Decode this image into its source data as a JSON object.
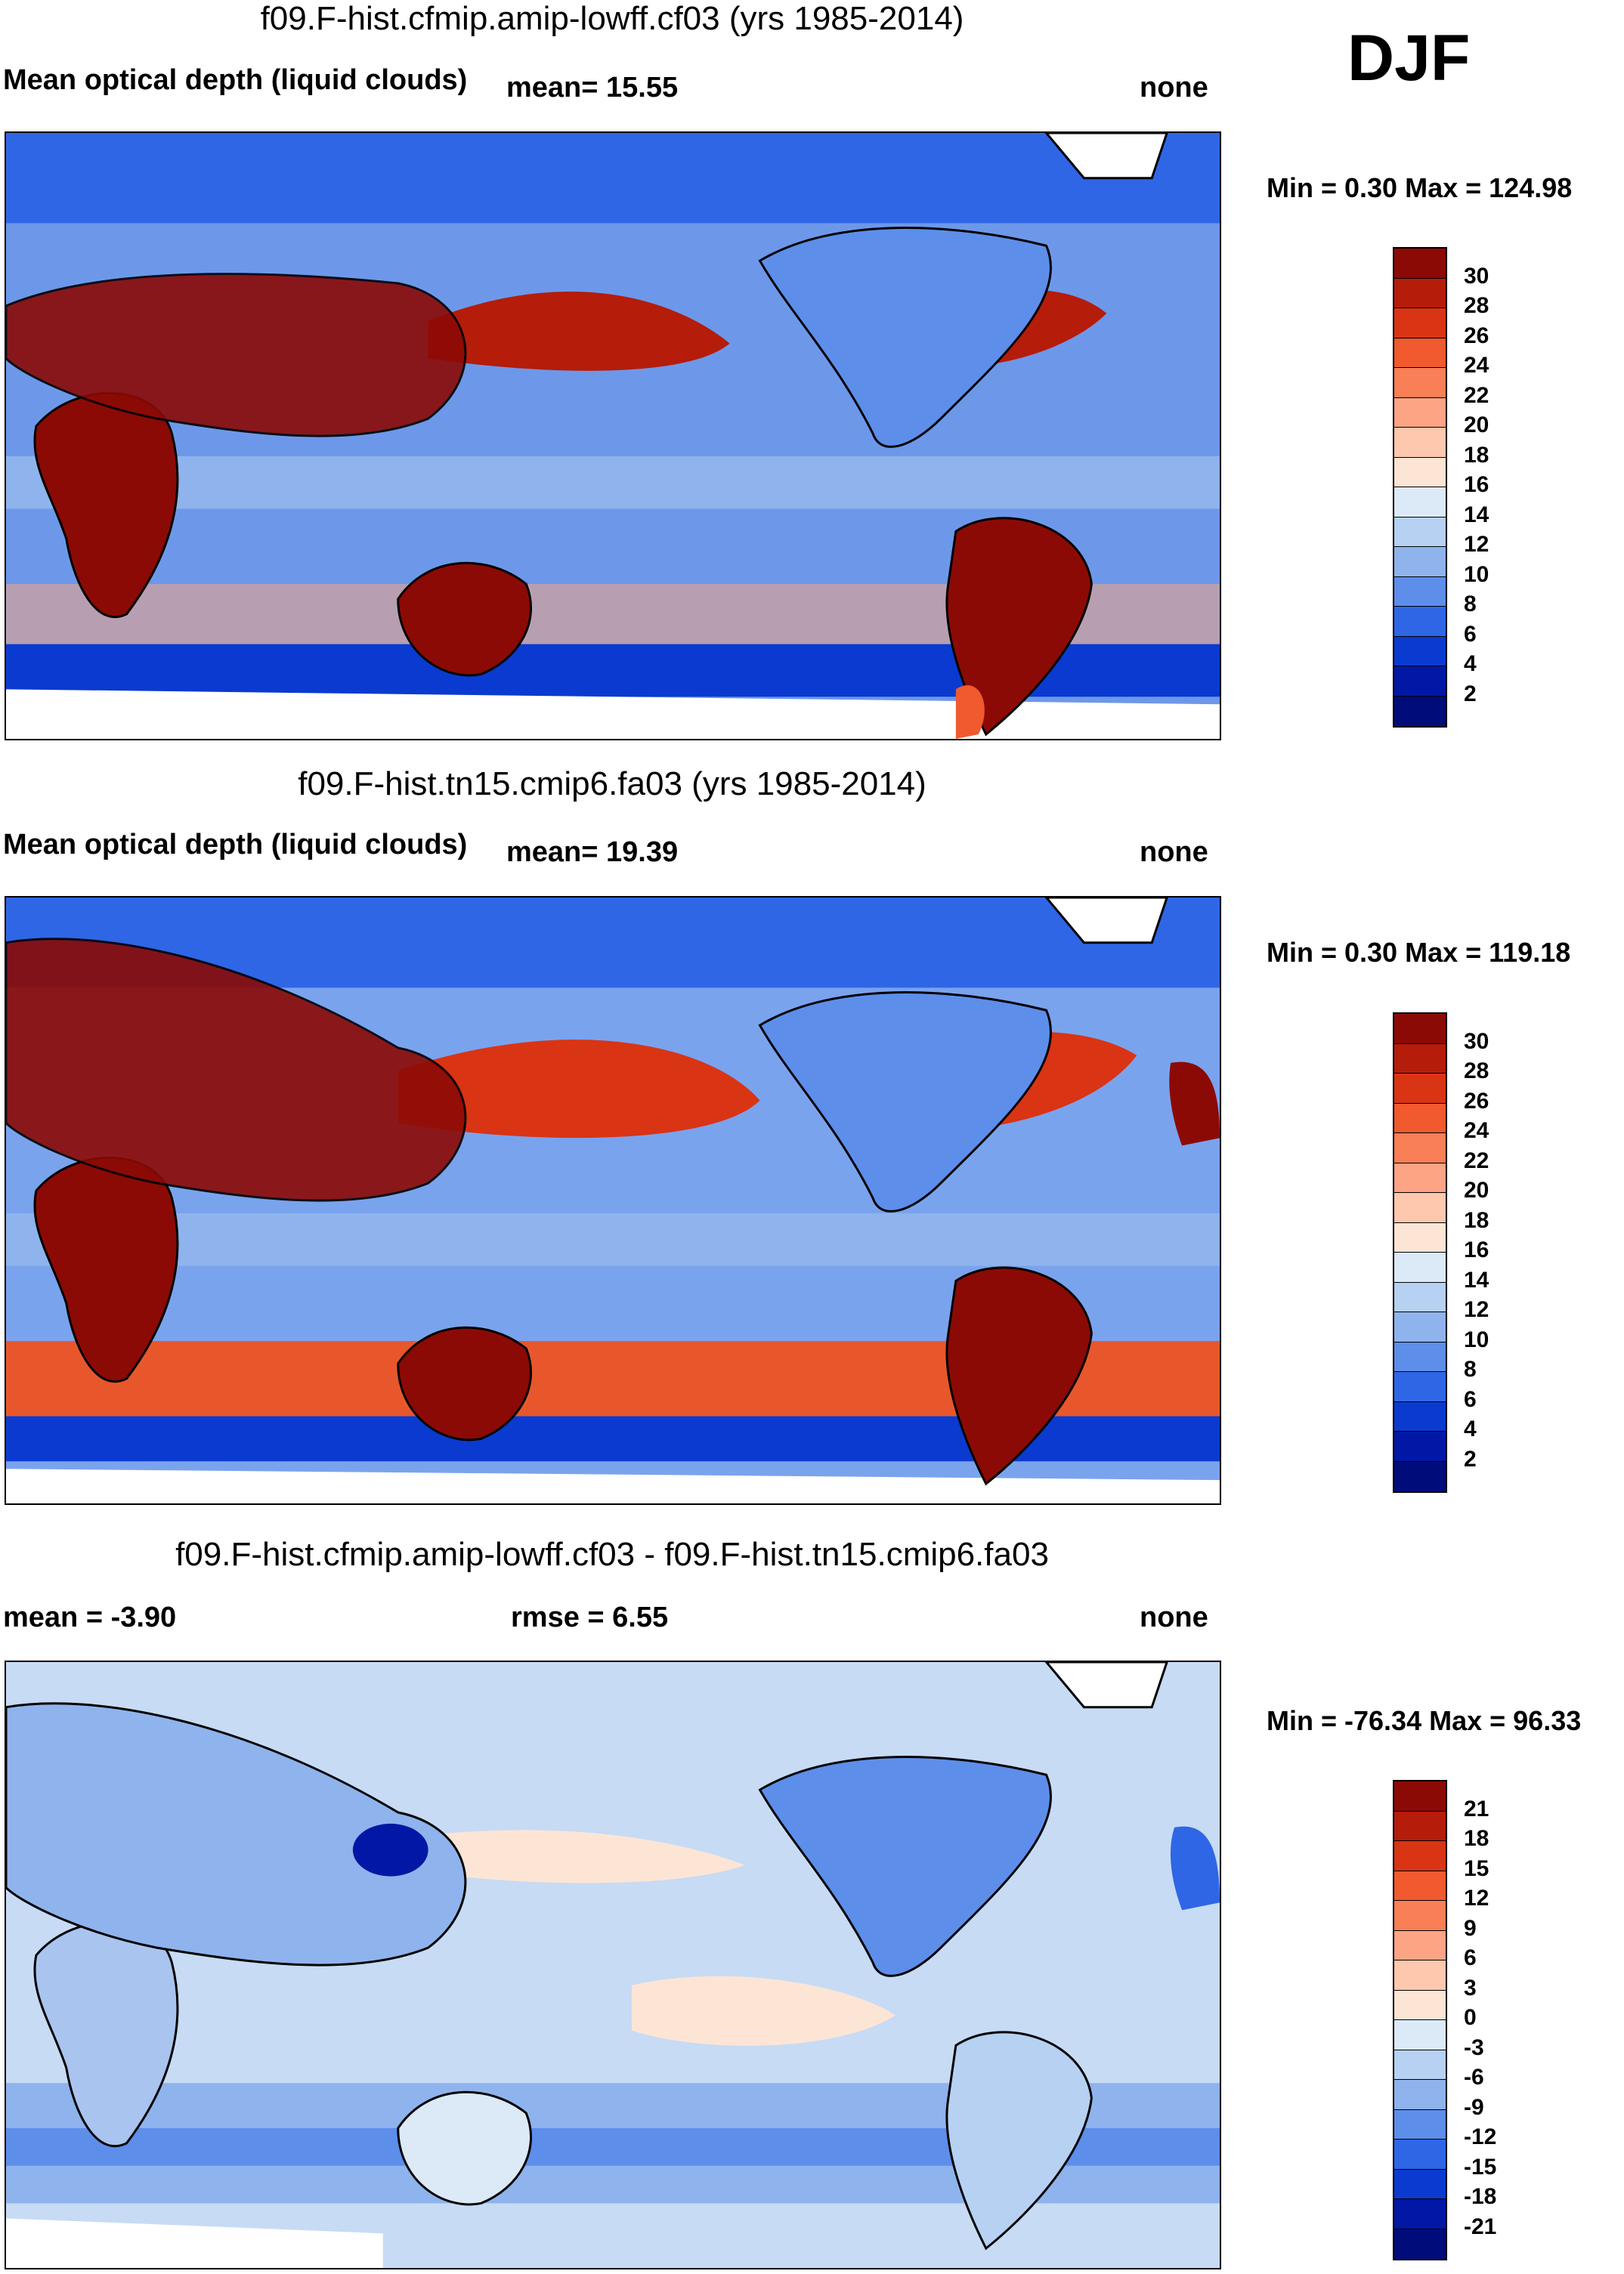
{
  "season": "DJF",
  "panels": [
    {
      "title": "f09.F-hist.cfmip.amip-lowff.cf03 (yrs 1985-2014)",
      "left_label": "Mean optical depth (liquid clouds)",
      "center_label": "mean=  15.55",
      "right_label": "none",
      "minmax": "Min =   0.30 Max = 124.98",
      "colorbar_labels": [
        "30",
        "28",
        "26",
        "24",
        "22",
        "20",
        "18",
        "16",
        "14",
        "12",
        "10",
        "8",
        "6",
        "4",
        "2"
      ],
      "colorbar_colors": [
        "#8c0a05",
        "#b51c0a",
        "#d93414",
        "#f05a2e",
        "#f97f57",
        "#fca484",
        "#fdc8ad",
        "#fde5d6",
        "#dce9f7",
        "#b6d1f2",
        "#8fb3ec",
        "#5d8eea",
        "#2f66e6",
        "#0a3ad0",
        "#0018a5",
        "#000c7a"
      ],
      "colors": {
        "ocean_mid": "#6d98ea",
        "ocean_high": "#1f4fd8",
        "land": "#8c0a05",
        "band": "#f4a582",
        "ice": "#ffffff"
      }
    },
    {
      "title": "f09.F-hist.tn15.cmip6.fa03 (yrs 1985-2014)",
      "left_label": "Mean optical depth (liquid clouds)",
      "center_label": "mean=  19.39",
      "right_label": "none",
      "minmax": "Min =   0.30 Max = 119.18",
      "colorbar_labels": [
        "30",
        "28",
        "26",
        "24",
        "22",
        "20",
        "18",
        "16",
        "14",
        "12",
        "10",
        "8",
        "6",
        "4",
        "2"
      ],
      "colorbar_colors": [
        "#8c0a05",
        "#b51c0a",
        "#d93414",
        "#f05a2e",
        "#f97f57",
        "#fca484",
        "#fdc8ad",
        "#fde5d6",
        "#dce9f7",
        "#b6d1f2",
        "#8fb3ec",
        "#5d8eea",
        "#2f66e6",
        "#0a3ad0",
        "#0018a5",
        "#000c7a"
      ],
      "colors": {
        "ocean_mid": "#7aa3ee",
        "ocean_high": "#2a5ae0",
        "land": "#8c0a05",
        "band": "#e8572c",
        "ice": "#ffffff"
      }
    },
    {
      "title": "f09.F-hist.cfmip.amip-lowff.cf03 - f09.F-hist.tn15.cmip6.fa03",
      "left_label": "mean =  -3.90",
      "center_label": "rmse =   6.55",
      "right_label": "none",
      "minmax": "Min = -76.34 Max =  96.33",
      "colorbar_labels": [
        "21",
        "18",
        "15",
        "12",
        "9",
        "6",
        "3",
        "0",
        "-3",
        "-6",
        "-9",
        "-12",
        "-15",
        "-18",
        "-21"
      ],
      "colorbar_colors": [
        "#8c0a05",
        "#b51c0a",
        "#d93414",
        "#f05a2e",
        "#f97f57",
        "#fca484",
        "#fdc8ad",
        "#fde5d6",
        "#dce9f7",
        "#b6d1f2",
        "#8fb3ec",
        "#5d8eea",
        "#2f66e6",
        "#0a3ad0",
        "#0018a5",
        "#000c7a"
      ],
      "colors": {
        "ocean_mid": "#c7dbf4",
        "ocean_high": "#5d8eea",
        "land": "#a9c4ef",
        "band": "#fde5d6",
        "ice": "#ffffff"
      }
    }
  ]
}
